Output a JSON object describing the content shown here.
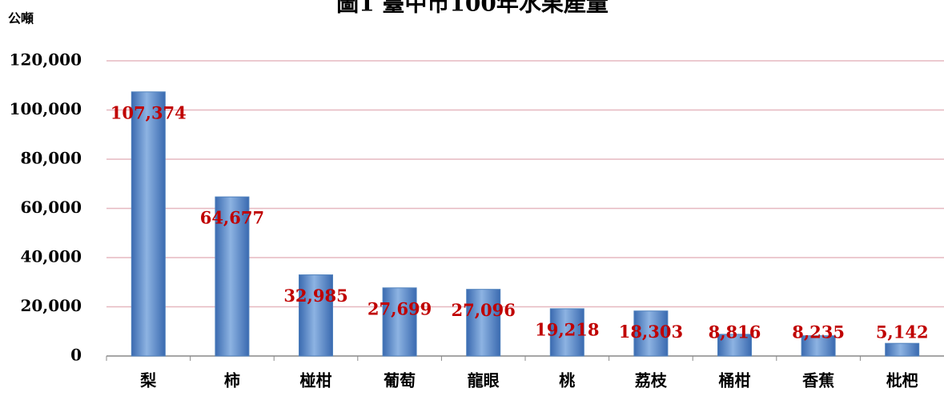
{
  "chart_data": {
    "type": "bar",
    "title": "圖1 臺中市100年水果產量",
    "y_axis_label": "公噸",
    "categories": [
      "梨",
      "柿",
      "椪柑",
      "葡萄",
      "龍眼",
      "桃",
      "荔枝",
      "桶柑",
      "香蕉",
      "枇杷"
    ],
    "values": [
      107374,
      64677,
      32985,
      27699,
      27096,
      19218,
      18303,
      8816,
      8235,
      5142
    ],
    "value_labels": [
      "107,374",
      "64,677",
      "32,985",
      "27,699",
      "27,096",
      "19,218",
      "18,303",
      "8,816",
      "8,235",
      "5,142"
    ],
    "color": "#4f81bd",
    "ylim": [
      0,
      120000
    ],
    "yticks": [
      0,
      {
        "value": 20000,
        "label": "20,000"
      },
      {
        "value": 40000,
        "label": "40,000"
      },
      {
        "value": 60000,
        "label": "60,000"
      },
      {
        "value": 80000,
        "label": "80,000"
      },
      {
        "value": 100000,
        "label": "100,000"
      },
      {
        "value": 120000,
        "label": "120,000"
      }
    ],
    "grid": true
  }
}
